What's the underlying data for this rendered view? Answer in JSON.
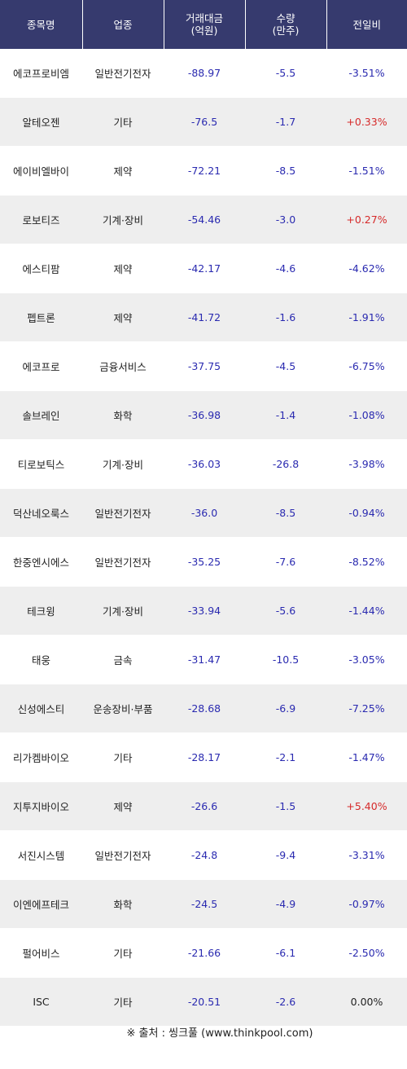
{
  "headers": {
    "name": "종목명",
    "sector": "업종",
    "amount_l1": "거래대금",
    "amount_l2": "(억원)",
    "volume_l1": "수량",
    "volume_l2": "(만주)",
    "change": "전일비"
  },
  "colors": {
    "header_bg": "#363a6e",
    "negative_text": "#2a2ab0",
    "positive_text": "#d62a2a",
    "stripe_bg": "#eeeeee"
  },
  "rows": [
    {
      "name": "에코프로비엠",
      "sector": "일반전기전자",
      "amount": "-88.97",
      "volume": "-5.5",
      "change": "-3.51%"
    },
    {
      "name": "알테오젠",
      "sector": "기타",
      "amount": "-76.5",
      "volume": "-1.7",
      "change": "+0.33%"
    },
    {
      "name": "에이비엘바이",
      "sector": "제약",
      "amount": "-72.21",
      "volume": "-8.5",
      "change": "-1.51%"
    },
    {
      "name": "로보티즈",
      "sector": "기계·장비",
      "amount": "-54.46",
      "volume": "-3.0",
      "change": "+0.27%"
    },
    {
      "name": "에스티팜",
      "sector": "제약",
      "amount": "-42.17",
      "volume": "-4.6",
      "change": "-4.62%"
    },
    {
      "name": "펩트론",
      "sector": "제약",
      "amount": "-41.72",
      "volume": "-1.6",
      "change": "-1.91%"
    },
    {
      "name": "에코프로",
      "sector": "금융서비스",
      "amount": "-37.75",
      "volume": "-4.5",
      "change": "-6.75%"
    },
    {
      "name": "솔브레인",
      "sector": "화학",
      "amount": "-36.98",
      "volume": "-1.4",
      "change": "-1.08%"
    },
    {
      "name": "티로보틱스",
      "sector": "기계·장비",
      "amount": "-36.03",
      "volume": "-26.8",
      "change": "-3.98%"
    },
    {
      "name": "덕산네오룩스",
      "sector": "일반전기전자",
      "amount": "-36.0",
      "volume": "-8.5",
      "change": "-0.94%"
    },
    {
      "name": "한중엔시에스",
      "sector": "일반전기전자",
      "amount": "-35.25",
      "volume": "-7.6",
      "change": "-8.52%"
    },
    {
      "name": "테크윙",
      "sector": "기계·장비",
      "amount": "-33.94",
      "volume": "-5.6",
      "change": "-1.44%"
    },
    {
      "name": "태웅",
      "sector": "금속",
      "amount": "-31.47",
      "volume": "-10.5",
      "change": "-3.05%"
    },
    {
      "name": "신성에스티",
      "sector": "운송장비·부품",
      "amount": "-28.68",
      "volume": "-6.9",
      "change": "-7.25%"
    },
    {
      "name": "리가켐바이오",
      "sector": "기타",
      "amount": "-28.17",
      "volume": "-2.1",
      "change": "-1.47%"
    },
    {
      "name": "지투지바이오",
      "sector": "제약",
      "amount": "-26.6",
      "volume": "-1.5",
      "change": "+5.40%"
    },
    {
      "name": "서진시스템",
      "sector": "일반전기전자",
      "amount": "-24.8",
      "volume": "-9.4",
      "change": "-3.31%"
    },
    {
      "name": "이엔에프테크",
      "sector": "화학",
      "amount": "-24.5",
      "volume": "-4.9",
      "change": "-0.97%"
    },
    {
      "name": "펄어비스",
      "sector": "기타",
      "amount": "-21.66",
      "volume": "-6.1",
      "change": "-2.50%"
    },
    {
      "name": "ISC",
      "sector": "기타",
      "amount": "-20.51",
      "volume": "-2.6",
      "change": "0.00%"
    }
  ],
  "source": "※ 출처 : 씽크풀 (www.thinkpool.com)"
}
